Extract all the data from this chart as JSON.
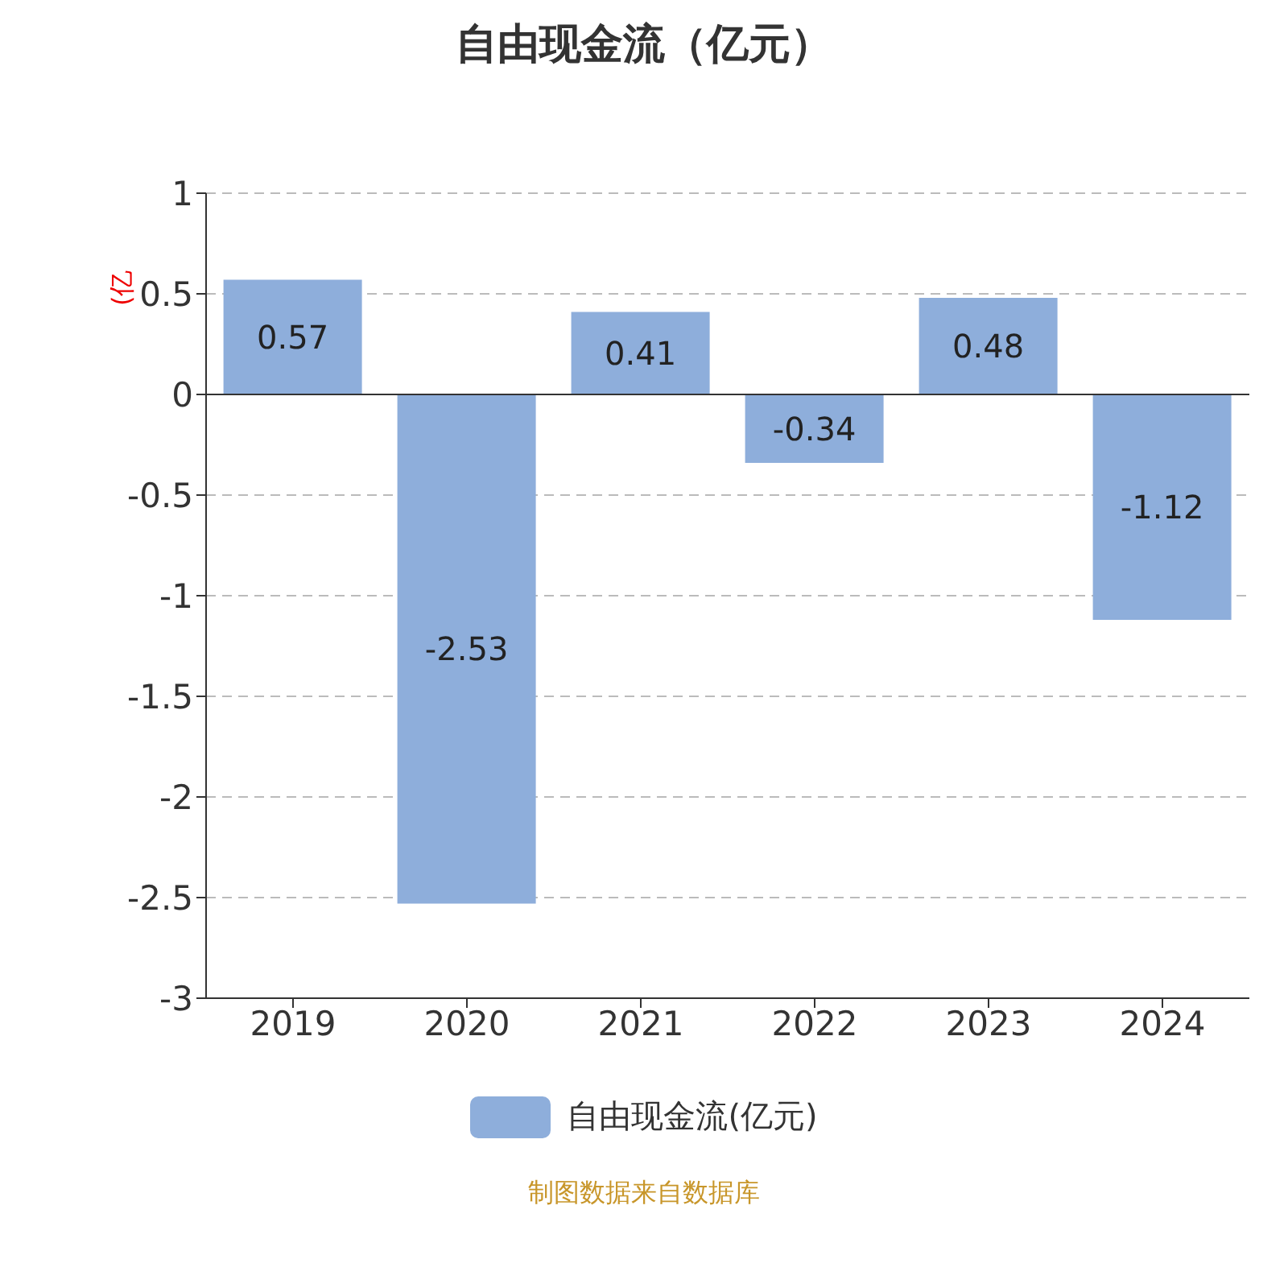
{
  "chart_data": {
    "type": "bar",
    "title": "自由现金流（亿元）",
    "ylabel": "(亿",
    "categories": [
      "2019",
      "2020",
      "2021",
      "2022",
      "2023",
      "2024"
    ],
    "series": [
      {
        "name": "自由现金流(亿元)",
        "color": "#8eaedb",
        "values": [
          0.57,
          -2.53,
          0.41,
          -0.34,
          0.48,
          -1.12
        ]
      }
    ],
    "ylim": [
      -3,
      1
    ],
    "yticks": [
      -3,
      -2.5,
      -2,
      -1.5,
      -1,
      -0.5,
      0,
      0.5,
      1
    ],
    "grid": "y",
    "legend": "bottom",
    "data_labels": true,
    "annotations": [
      "制图数据来自数据库"
    ]
  }
}
